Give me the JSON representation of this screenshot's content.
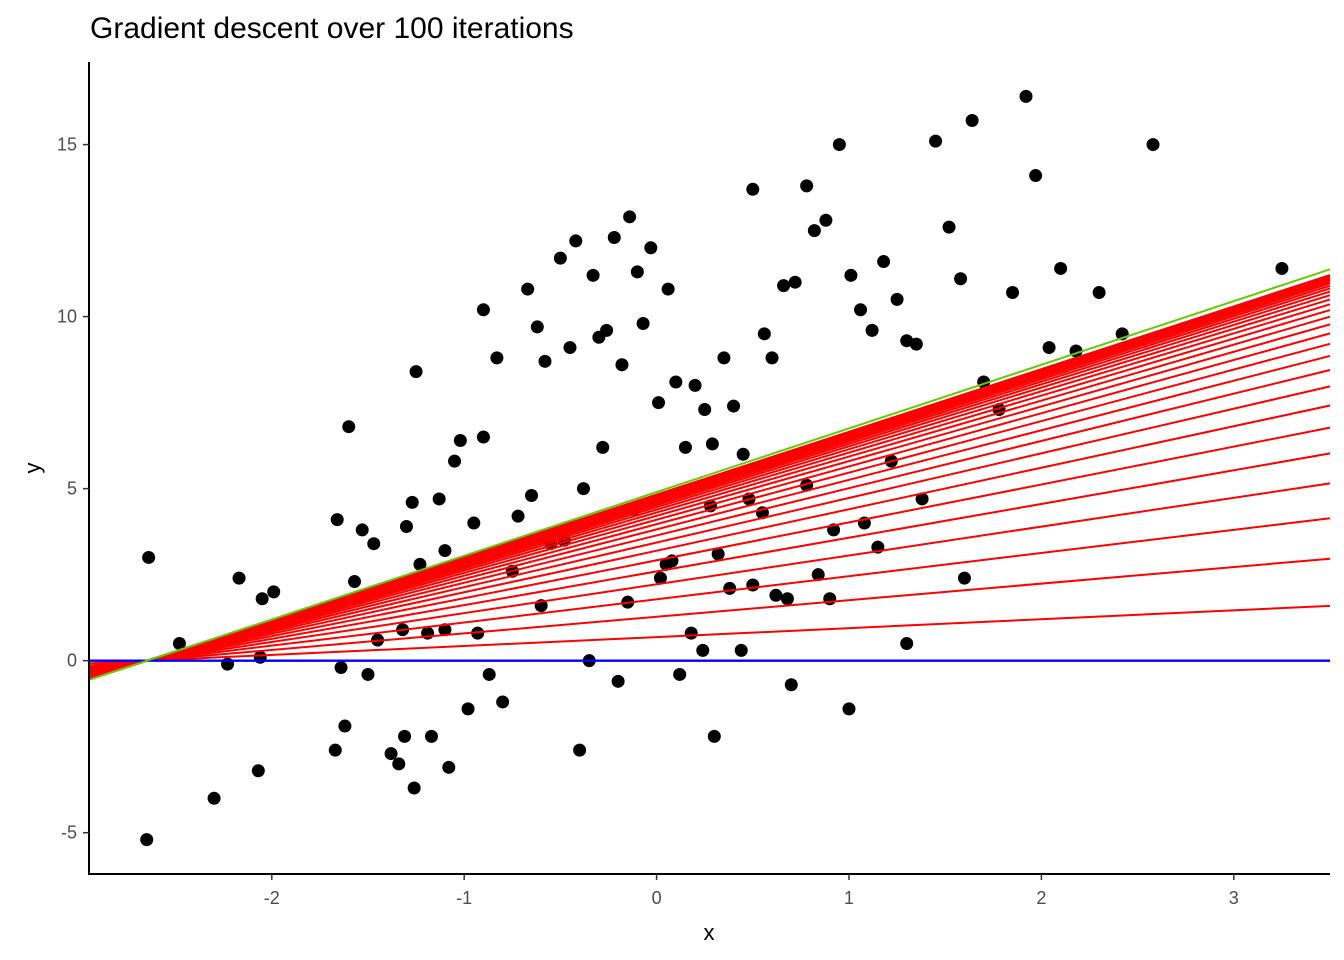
{
  "chart_data": {
    "type": "scatter",
    "title": "Gradient descent over 100 iterations",
    "xlabel": "x",
    "ylabel": "y",
    "xlim": [
      -2.95,
      3.5
    ],
    "ylim": [
      -6.2,
      17.4
    ],
    "xticks": [
      -2,
      -1,
      0,
      1,
      2,
      3
    ],
    "yticks": [
      -5,
      0,
      5,
      10,
      15
    ],
    "grid": false,
    "legend": "none",
    "colors": {
      "points": "#000000",
      "iterations": "#ff0000",
      "initial": "#0000ff",
      "final": "#66cc00"
    },
    "points_x": [
      -2.65,
      -2.64,
      -2.48,
      -2.3,
      -2.23,
      -2.17,
      -2.07,
      -2.06,
      -2.05,
      -1.99,
      -1.67,
      -1.66,
      -1.64,
      -1.62,
      -1.6,
      -1.57,
      -1.53,
      -1.5,
      -1.47,
      -1.45,
      -1.38,
      -1.34,
      -1.32,
      -1.31,
      -1.3,
      -1.27,
      -1.26,
      -1.25,
      -1.23,
      -1.19,
      -1.17,
      -1.13,
      -1.1,
      -1.08,
      -1.05,
      -1.02,
      -0.98,
      -0.95,
      -0.93,
      -0.9,
      -0.87,
      -0.83,
      -0.75,
      -0.67,
      -0.62,
      -0.58,
      -0.55,
      -0.5,
      -0.45,
      -0.42,
      -0.38,
      -0.33,
      -0.3,
      -0.26,
      -0.22,
      -0.18,
      -0.14,
      -0.1,
      -0.07,
      -0.03,
      0.01,
      0.06,
      0.1,
      0.15,
      0.2,
      0.25,
      0.29,
      0.35,
      0.4,
      0.45,
      0.5,
      0.56,
      0.6,
      0.66,
      0.72,
      0.78,
      0.82,
      0.88,
      0.95,
      1.01,
      1.06,
      1.12,
      1.18,
      1.25,
      1.3,
      1.35,
      1.45,
      1.52,
      1.58,
      1.64,
      1.7,
      1.78,
      1.85,
      1.92,
      1.97,
      2.04,
      2.1,
      2.18,
      2.3,
      2.42,
      2.58,
      3.25,
      0.9,
      1.0,
      -0.2,
      -0.4,
      0.3,
      0.5,
      0.7,
      -0.6,
      -0.8,
      0.12,
      0.24,
      -0.35,
      0.38,
      0.62,
      0.84,
      -0.15,
      0.02,
      0.18,
      -0.48,
      -0.72,
      0.44,
      0.68,
      1.08,
      1.22,
      -0.28,
      -0.12,
      0.08,
      0.32,
      0.55,
      0.78,
      1.15,
      1.38,
      -0.65,
      -0.9,
      -1.1,
      0.05,
      0.28,
      0.48,
      0.92,
      1.3,
      1.6
    ],
    "points_y": [
      -5.2,
      3.0,
      0.5,
      -4.0,
      -0.1,
      2.4,
      -3.2,
      0.1,
      1.8,
      2.0,
      -2.6,
      4.1,
      -0.2,
      -1.9,
      6.8,
      2.3,
      3.8,
      -0.4,
      3.4,
      0.6,
      -2.7,
      -3.0,
      0.9,
      -2.2,
      3.9,
      4.6,
      -3.7,
      8.4,
      2.8,
      0.8,
      -2.2,
      4.7,
      0.9,
      -3.1,
      5.8,
      6.4,
      -1.4,
      4.0,
      0.8,
      10.2,
      -0.4,
      8.8,
      2.6,
      10.8,
      9.7,
      8.7,
      3.4,
      11.7,
      9.1,
      12.2,
      5.0,
      11.2,
      9.4,
      9.6,
      12.3,
      8.6,
      12.9,
      11.3,
      9.8,
      12.0,
      7.5,
      10.8,
      8.1,
      6.2,
      8.0,
      7.3,
      6.3,
      8.8,
      7.4,
      6.0,
      13.7,
      9.5,
      8.8,
      10.9,
      11.0,
      13.8,
      12.5,
      12.8,
      15.0,
      11.2,
      10.2,
      9.6,
      11.6,
      10.5,
      9.3,
      9.2,
      15.1,
      12.6,
      11.1,
      15.7,
      8.1,
      7.3,
      10.7,
      16.4,
      14.1,
      9.1,
      11.4,
      9.0,
      10.7,
      9.5,
      15.0,
      11.4,
      1.8,
      -1.4,
      -0.6,
      -2.6,
      -2.2,
      2.2,
      -0.7,
      1.6,
      -1.2,
      -0.4,
      0.3,
      0.0,
      2.1,
      1.9,
      2.5,
      1.7,
      2.4,
      0.8,
      3.5,
      4.2,
      0.3,
      1.8,
      4.0,
      5.8,
      6.2,
      4.4,
      2.9,
      3.1,
      4.3,
      5.1,
      3.3,
      4.7,
      4.8,
      6.5,
      3.2,
      2.8,
      4.5,
      4.7,
      3.8,
      0.5,
      2.4
    ]
  }
}
